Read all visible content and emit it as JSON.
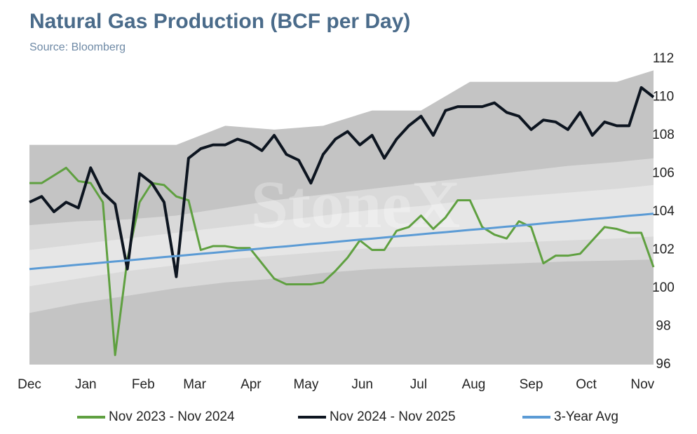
{
  "chart_data": {
    "type": "line",
    "title": "Natural Gas Production (BCF per Day)",
    "subtitle": "Source: Bloomberg",
    "watermark": "StoneX",
    "x": [
      0,
      1,
      2,
      3,
      4,
      5,
      6,
      7,
      8,
      9,
      10,
      11,
      12,
      13,
      14,
      15,
      16,
      17,
      18,
      19,
      20,
      21,
      22,
      23,
      24,
      25,
      26,
      27,
      28,
      29,
      30,
      31,
      32,
      33,
      34,
      35,
      36,
      37,
      38,
      39,
      40,
      41,
      42,
      43,
      44,
      45,
      46,
      47,
      48,
      49,
      50,
      51
    ],
    "xlim": [
      0,
      51
    ],
    "xticks": [
      {
        "value": 0,
        "label": "Dec"
      },
      {
        "value": 4.6,
        "label": "Jan"
      },
      {
        "value": 9.3,
        "label": "Feb"
      },
      {
        "value": 13.5,
        "label": "Mar"
      },
      {
        "value": 18.1,
        "label": "Apr"
      },
      {
        "value": 22.6,
        "label": "May"
      },
      {
        "value": 27.2,
        "label": "Jun"
      },
      {
        "value": 31.8,
        "label": "Jul"
      },
      {
        "value": 36.3,
        "label": "Aug"
      },
      {
        "value": 41.0,
        "label": "Sep"
      },
      {
        "value": 45.5,
        "label": "Oct"
      },
      {
        "value": 50.1,
        "label": "Nov"
      }
    ],
    "ylim": [
      96,
      112
    ],
    "yticks": [
      96,
      98,
      100,
      102,
      104,
      106,
      108,
      110,
      112
    ],
    "y_axis_side": "right",
    "legend": "bottom",
    "bands": {
      "x": [
        0,
        4,
        8,
        12,
        16,
        20,
        24,
        28,
        32,
        36,
        40,
        44,
        48,
        51
      ],
      "layers": [
        {
          "color": "#c4c4c4",
          "upper": [
            107.5,
            107.5,
            107.5,
            107.5,
            108.5,
            108.3,
            108.5,
            109.3,
            109.3,
            110.8,
            110.8,
            110.8,
            110.8,
            111.4
          ]
        },
        {
          "color": "#d9d9d9",
          "lower": [
            98.7,
            99.2,
            99.6,
            100.0,
            100.3,
            100.5,
            100.8,
            101.0,
            101.1,
            101.2,
            101.3,
            101.4,
            101.45,
            101.5
          ],
          "upper": [
            103.3,
            103.5,
            103.6,
            103.8,
            104.2,
            104.6,
            104.9,
            105.2,
            105.5,
            105.8,
            106.1,
            106.4,
            106.6,
            106.8
          ]
        },
        {
          "color": "#e6e6e6",
          "lower": [
            100.1,
            100.5,
            100.9,
            101.2,
            101.5,
            101.7,
            101.9,
            102.1,
            102.2,
            102.3,
            102.4,
            102.5,
            102.6,
            102.7
          ],
          "upper": [
            102.0,
            102.3,
            102.6,
            102.9,
            103.2,
            103.5,
            103.8,
            104.1,
            104.3,
            104.6,
            104.8,
            105.0,
            105.2,
            105.4
          ]
        }
      ]
    },
    "series": [
      {
        "name": "Nov 2023 - Nov 2024",
        "color": "#5fa040",
        "width": 3,
        "values": [
          105.5,
          105.5,
          105.9,
          106.3,
          105.6,
          105.5,
          104.5,
          96.5,
          101.5,
          104.5,
          105.5,
          105.4,
          104.8,
          104.6,
          102,
          102.2,
          102.2,
          102.1,
          102.1,
          101.3,
          100.5,
          100.2,
          100.2,
          100.2,
          100.3,
          100.9,
          101.6,
          102.5,
          102,
          102,
          103,
          103.2,
          103.8,
          103.1,
          103.7,
          104.6,
          104.6,
          103.2,
          102.8,
          102.6,
          103.5,
          103.2,
          101.3,
          101.7,
          101.7,
          101.8,
          102.5,
          103.2,
          103.1,
          102.9,
          102.9,
          101.1
        ]
      },
      {
        "name": "Nov 2024 - Nov 2025",
        "color": "#0d1520",
        "width": 4,
        "values": [
          104.5,
          104.8,
          104,
          104.5,
          104.2,
          106.3,
          105,
          104.4,
          101,
          106,
          105.5,
          104.5,
          100.6,
          106.8,
          107.3,
          107.5,
          107.5,
          107.8,
          107.6,
          107.2,
          108,
          107,
          106.7,
          105.5,
          107,
          107.8,
          108.2,
          107.5,
          108,
          106.8,
          107.8,
          108.5,
          109,
          108,
          109.3,
          109.5,
          109.5,
          109.5,
          109.7,
          109.2,
          109,
          108.3,
          108.8,
          108.7,
          108.3,
          109.2,
          108,
          108.7,
          108.5,
          108.5,
          110.5,
          110
        ]
      },
      {
        "name": "3-Year Avg",
        "color": "#5b9bd5",
        "width": 3,
        "values": [
          101.0,
          101.06,
          101.11,
          101.17,
          101.23,
          101.28,
          101.34,
          101.4,
          101.45,
          101.51,
          101.57,
          101.63,
          101.68,
          101.74,
          101.8,
          101.85,
          101.91,
          101.97,
          102.02,
          102.08,
          102.14,
          102.19,
          102.25,
          102.31,
          102.36,
          102.42,
          102.48,
          102.54,
          102.59,
          102.65,
          102.71,
          102.76,
          102.82,
          102.88,
          102.93,
          102.99,
          103.05,
          103.1,
          103.16,
          103.22,
          103.27,
          103.33,
          103.39,
          103.45,
          103.5,
          103.56,
          103.62,
          103.67,
          103.73,
          103.79,
          103.84,
          103.9
        ]
      }
    ]
  }
}
